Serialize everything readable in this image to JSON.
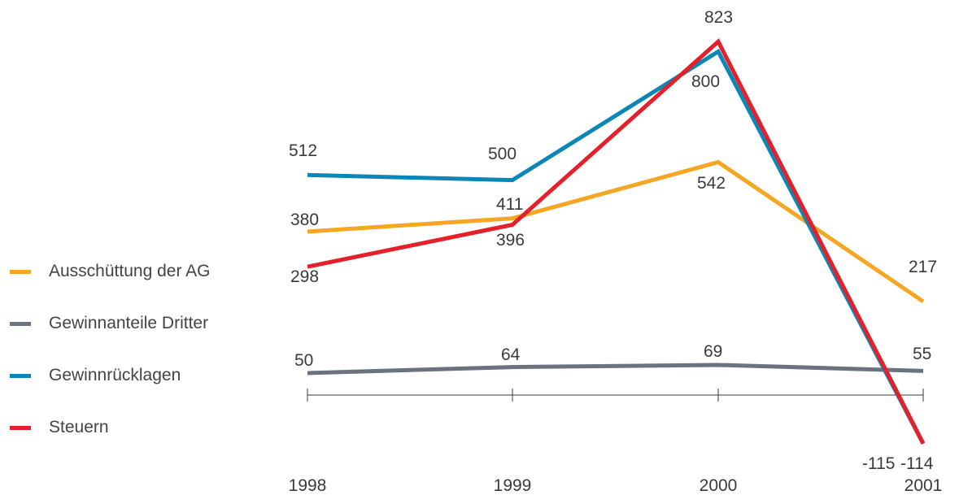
{
  "chart_data": {
    "type": "line",
    "categories": [
      "1998",
      "1999",
      "2000",
      "2001"
    ],
    "series": [
      {
        "name": "Ausschüttung der AG",
        "color": "#f5a623",
        "values": [
          380,
          411,
          542,
          217
        ]
      },
      {
        "name": "Gewinnanteile Dritter",
        "color": "#6b7280",
        "values": [
          50,
          64,
          69,
          55
        ]
      },
      {
        "name": "Gewinnrücklagen",
        "color": "#0a87b5",
        "values": [
          512,
          500,
          800,
          -115
        ]
      },
      {
        "name": "Steuern",
        "color": "#e5202b",
        "values": [
          298,
          396,
          823,
          -114
        ]
      }
    ],
    "data_labels": [
      {
        "text": "512",
        "series": "Gewinnrücklagen",
        "index": 0
      },
      {
        "text": "500",
        "series": "Gewinnrücklagen",
        "index": 1
      },
      {
        "text": "800",
        "series": "Gewinnrücklagen",
        "index": 2
      },
      {
        "text": "-115",
        "series": "Gewinnrücklagen",
        "index": 3
      },
      {
        "text": "823",
        "series": "Steuern",
        "index": 2
      },
      {
        "text": "396",
        "series": "Steuern",
        "index": 1
      },
      {
        "text": "298",
        "series": "Steuern",
        "index": 0
      },
      {
        "text": "-114",
        "series": "Steuern",
        "index": 3
      },
      {
        "text": "380",
        "series": "Ausschüttung der AG",
        "index": 0
      },
      {
        "text": "411",
        "series": "Ausschüttung der AG",
        "index": 1
      },
      {
        "text": "542",
        "series": "Ausschüttung der AG",
        "index": 2
      },
      {
        "text": "217",
        "series": "Ausschüttung der AG",
        "index": 3
      },
      {
        "text": "50",
        "series": "Gewinnanteile Dritter",
        "index": 0
      },
      {
        "text": "64",
        "series": "Gewinnanteile Dritter",
        "index": 1
      },
      {
        "text": "69",
        "series": "Gewinnanteile Dritter",
        "index": 2
      },
      {
        "text": "55",
        "series": "Gewinnanteile Dritter",
        "index": 3
      }
    ],
    "title": "",
    "xlabel": "",
    "ylabel": "",
    "ylim": [
      -150,
      850
    ],
    "grid": false,
    "legend_position": "left"
  }
}
